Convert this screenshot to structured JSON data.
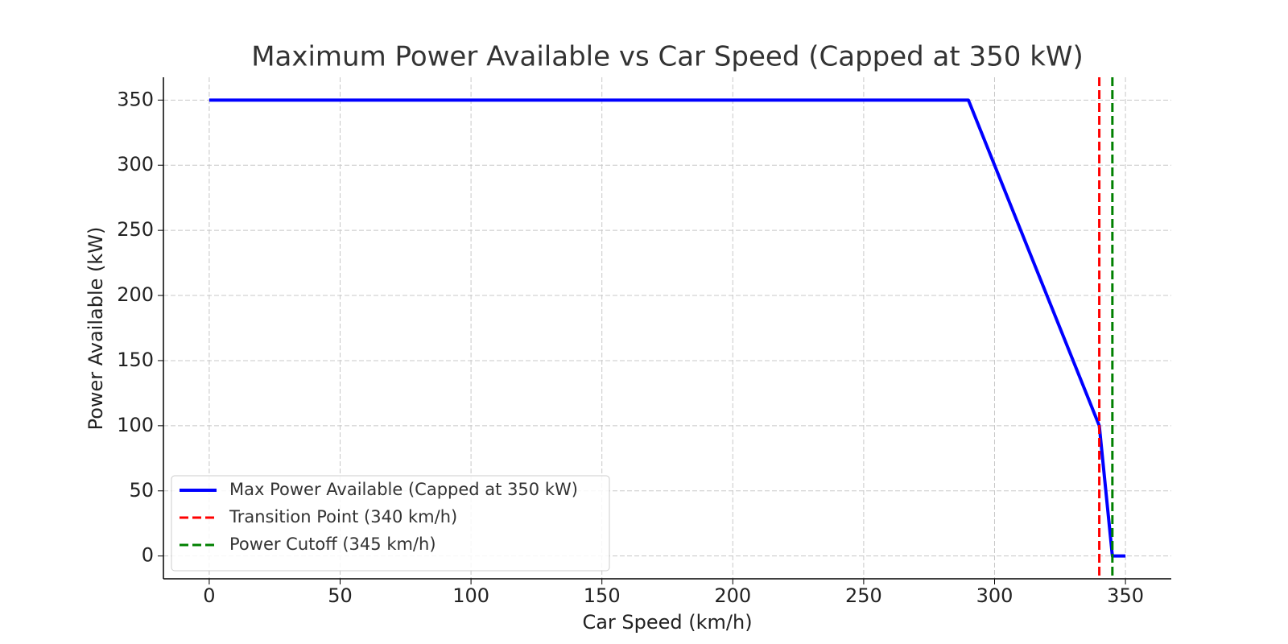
{
  "chart_data": {
    "type": "line",
    "title": "Maximum Power Available vs Car Speed (Capped at 350 kW)",
    "x_label": "Car Speed (km/h)",
    "y_label": "Power Available (kW)",
    "x": [
      0,
      290,
      340,
      345,
      350
    ],
    "series": [
      {
        "name": "Max Power Available (Capped at 350 kW)",
        "color": "#0000ff",
        "values": [
          350,
          350,
          100,
          0,
          0
        ]
      }
    ],
    "vlines": [
      {
        "name": "Transition Point (340 km/h)",
        "color": "#ff0000",
        "x": 340
      },
      {
        "name": "Power Cutoff (345 km/h)",
        "color": "#008000",
        "x": 345
      }
    ],
    "xlim": [
      -17.5,
      367.5
    ],
    "ylim": [
      -17.5,
      367.5
    ],
    "xticks": [
      0,
      50,
      100,
      150,
      200,
      250,
      300,
      350
    ],
    "yticks": [
      0,
      50,
      100,
      150,
      200,
      250,
      300,
      350
    ],
    "grid": true,
    "legend": "lower left"
  }
}
